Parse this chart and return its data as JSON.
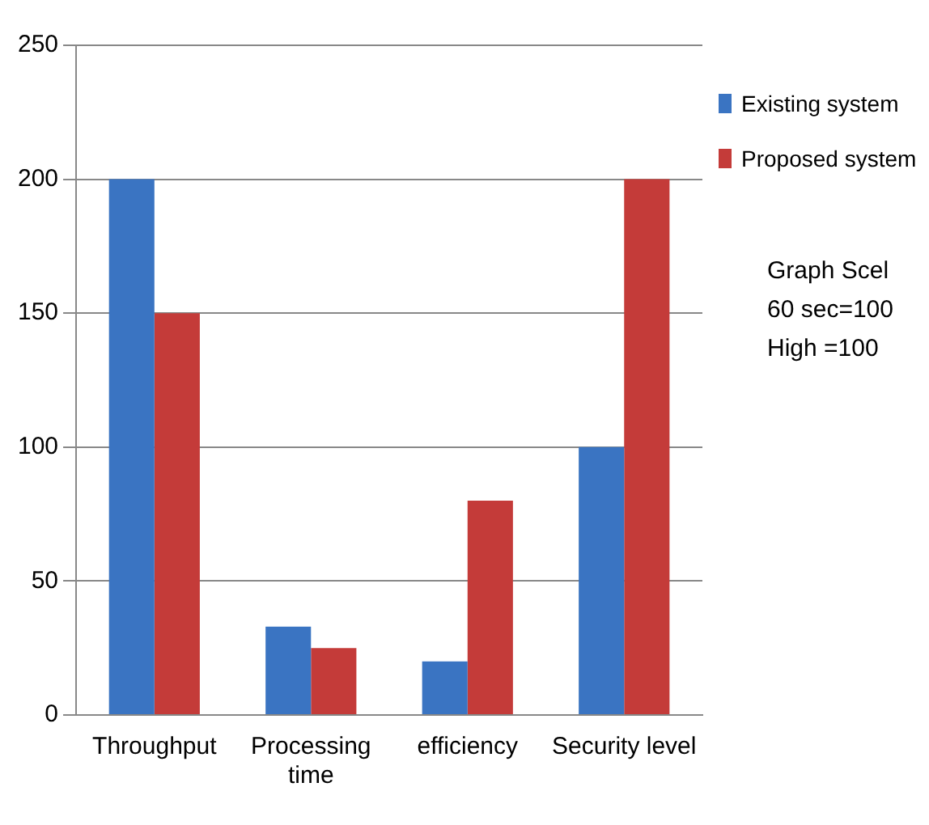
{
  "chart_data": {
    "type": "bar",
    "categories": [
      "Throughput",
      "Processing time",
      "efficiency",
      "Security level"
    ],
    "series": [
      {
        "name": "Existing system",
        "color": "#3a74c2",
        "values": [
          200,
          33,
          20,
          100
        ]
      },
      {
        "name": "Proposed system",
        "color": "#c43b39",
        "values": [
          150,
          25,
          80,
          200
        ]
      }
    ],
    "ylim": [
      0,
      250
    ],
    "yticks": [
      0,
      50,
      100,
      150,
      200,
      250
    ],
    "grid": "y",
    "legend": "right",
    "annotations": [
      "Graph Scel",
      "60 sec=100",
      "High =100"
    ]
  }
}
